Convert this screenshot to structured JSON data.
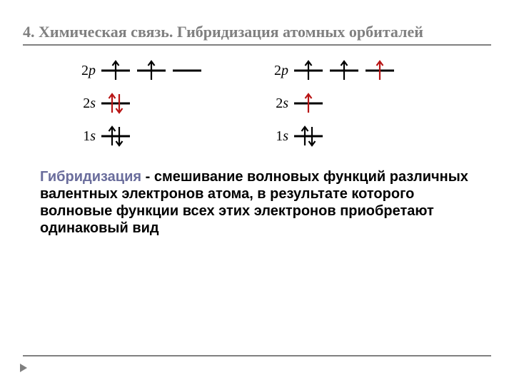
{
  "title": "4. Химическая связь. Гибридизация атомных орбиталей",
  "colors": {
    "title": "#808080",
    "rule": "#808080",
    "term": "#6a6d9c",
    "text": "#000000",
    "electron_black": "#000000",
    "electron_red": "#b81414",
    "orbital_line": "#000000",
    "background": "#ffffff"
  },
  "arrow_stroke_width": 2.2,
  "diagrams": [
    {
      "rows": [
        {
          "label_n": "2",
          "label_l": "p",
          "orbitals": [
            {
              "electrons": [
                {
                  "dir": "up",
                  "pos": "center",
                  "color": "#000000"
                }
              ]
            },
            {
              "electrons": [
                {
                  "dir": "up",
                  "pos": "center",
                  "color": "#000000"
                }
              ]
            },
            {
              "electrons": []
            }
          ]
        },
        {
          "label_n": "2",
          "label_l": "s",
          "orbitals": [
            {
              "electrons": [
                {
                  "dir": "up",
                  "pos": "left",
                  "color": "#b81414"
                },
                {
                  "dir": "down",
                  "pos": "right",
                  "color": "#b81414"
                }
              ]
            }
          ]
        },
        {
          "label_n": "1",
          "label_l": "s",
          "orbitals": [
            {
              "electrons": [
                {
                  "dir": "up",
                  "pos": "left",
                  "color": "#000000"
                },
                {
                  "dir": "down",
                  "pos": "right",
                  "color": "#000000"
                }
              ]
            }
          ]
        }
      ]
    },
    {
      "rows": [
        {
          "label_n": "2",
          "label_l": "p",
          "orbitals": [
            {
              "electrons": [
                {
                  "dir": "up",
                  "pos": "center",
                  "color": "#000000"
                }
              ]
            },
            {
              "electrons": [
                {
                  "dir": "up",
                  "pos": "center",
                  "color": "#000000"
                }
              ]
            },
            {
              "electrons": [
                {
                  "dir": "up",
                  "pos": "center",
                  "color": "#b81414"
                }
              ]
            }
          ]
        },
        {
          "label_n": "2",
          "label_l": "s",
          "orbitals": [
            {
              "electrons": [
                {
                  "dir": "up",
                  "pos": "center",
                  "color": "#b81414"
                }
              ]
            }
          ]
        },
        {
          "label_n": "1",
          "label_l": "s",
          "orbitals": [
            {
              "electrons": [
                {
                  "dir": "up",
                  "pos": "left",
                  "color": "#000000"
                },
                {
                  "dir": "down",
                  "pos": "right",
                  "color": "#000000"
                }
              ]
            }
          ]
        }
      ]
    }
  ],
  "definition": {
    "term": "Гибридизация",
    "rest": " - смешивание волновых функций различных валентных электронов атома, в результате которого волновые функции всех этих электронов приобретают одинаковый вид"
  }
}
